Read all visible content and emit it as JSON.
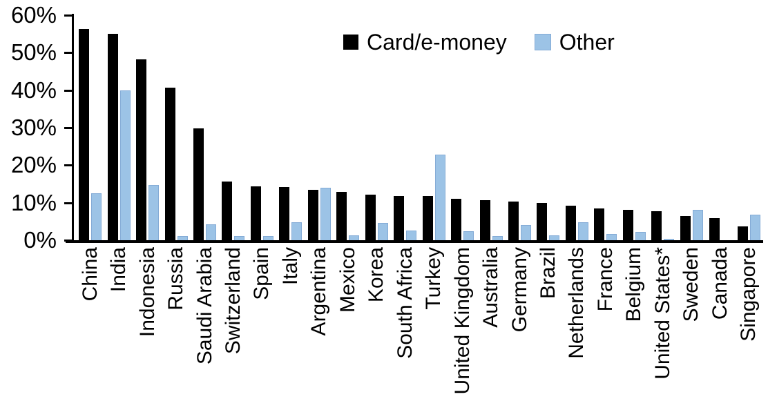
{
  "chart_data": {
    "type": "bar",
    "title": "",
    "xlabel": "",
    "ylabel": "",
    "ylim": [
      0,
      60
    ],
    "ytick_step": 10,
    "ytick_labels": [
      "0%",
      "10%",
      "20%",
      "30%",
      "40%",
      "50%",
      "60%"
    ],
    "grid": false,
    "legend_position": "top-center",
    "categories": [
      "China",
      "India",
      "Indonesia",
      "Russia",
      "Saudi Arabia",
      "Switzerland",
      "Spain",
      "Italy",
      "Argentina",
      "Mexico",
      "Korea",
      "South Africa",
      "Turkey",
      "United Kingdom",
      "Australia",
      "Germany",
      "Brazil",
      "Netherlands",
      "France",
      "Belgium",
      "United States*",
      "Sweden",
      "Canada",
      "Singapore"
    ],
    "series": [
      {
        "name": "Card/e-money",
        "color": "#000000",
        "values": [
          56.3,
          55.1,
          48.3,
          40.6,
          29.9,
          15.7,
          14.3,
          14.2,
          13.4,
          12.9,
          12.2,
          11.8,
          11.7,
          11.0,
          10.7,
          10.4,
          9.9,
          9.2,
          8.5,
          8.1,
          7.7,
          6.5,
          5.9,
          3.7
        ]
      },
      {
        "name": "Other",
        "color": "#9CC3E6",
        "border_color": "#84ABD6",
        "values": [
          12.3,
          39.7,
          14.6,
          1.0,
          4.0,
          0.9,
          1.0,
          4.6,
          13.8,
          1.2,
          4.5,
          2.4,
          22.6,
          2.2,
          0.9,
          3.8,
          1.1,
          4.7,
          1.5,
          2.0,
          0.2,
          8.0,
          0.0,
          6.6
        ]
      }
    ]
  }
}
